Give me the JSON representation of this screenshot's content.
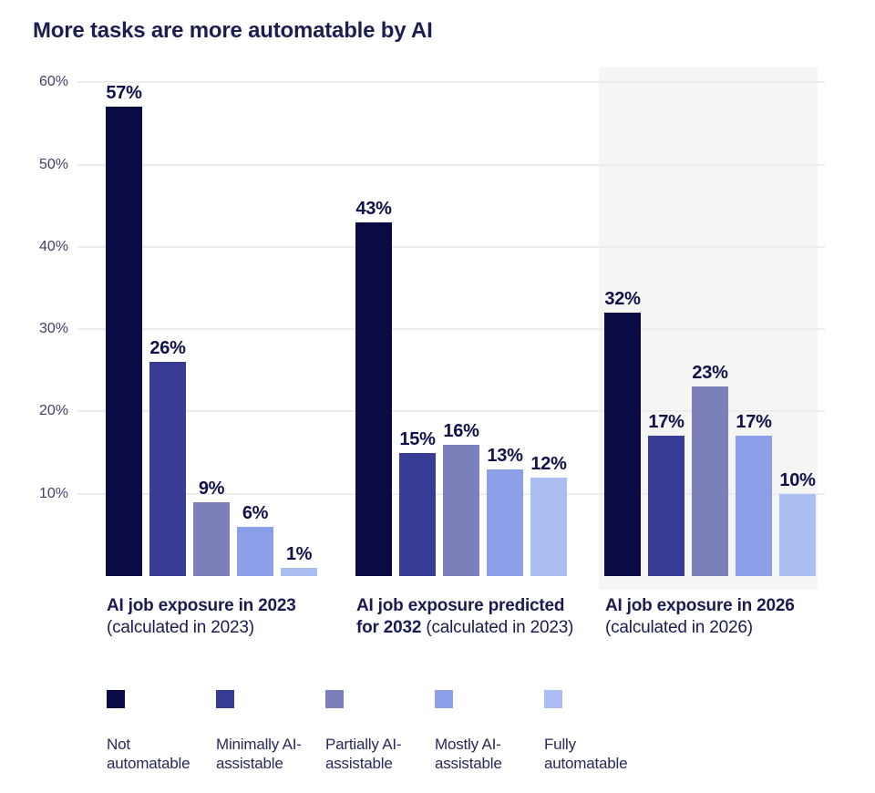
{
  "chart_data": {
    "type": "bar",
    "title": "More tasks are more automatable by AI",
    "xlabel": "",
    "ylabel": "",
    "ylim": [
      0,
      62
    ],
    "grid": true,
    "legend_position": "bottom",
    "y_ticks": [
      "10%",
      "20%",
      "30%",
      "40%",
      "50%",
      "60%"
    ],
    "value_label_format": "percent",
    "highlighted_group_index": 2,
    "groups": [
      {
        "label_lines": [
          [
            {
              "text": "AI job exposure in 2023",
              "bold": true
            }
          ],
          [
            {
              "text": "(calculated in 2023)",
              "bold": false
            }
          ]
        ]
      },
      {
        "label_lines": [
          [
            {
              "text": "AI job exposure predicted",
              "bold": true
            }
          ],
          [
            {
              "text": "for 2032",
              "bold": true
            },
            {
              "text": " (calculated in 2023)",
              "bold": false
            }
          ]
        ]
      },
      {
        "label_lines": [
          [
            {
              "text": "AI job exposure in 2026",
              "bold": true
            }
          ],
          [
            {
              "text": "(calculated in 2026)",
              "bold": false
            }
          ]
        ]
      }
    ],
    "series": [
      {
        "name": "Not automatable",
        "color": "#0a0b45",
        "values": [
          57,
          43,
          32
        ]
      },
      {
        "name": "Minimally AI-assistable",
        "color": "#373c97",
        "values": [
          26,
          15,
          17
        ]
      },
      {
        "name": "Partially AI-assistable",
        "color": "#7b7fba",
        "values": [
          9,
          16,
          23
        ]
      },
      {
        "name": "Mostly AI-assistable",
        "color": "#8c9fe9",
        "values": [
          6,
          13,
          17
        ]
      },
      {
        "name": "Fully automatable",
        "color": "#aabef2",
        "values": [
          1,
          12,
          10
        ]
      }
    ],
    "colors": {
      "grid": "#ececec",
      "highlight_bg": "#f5f5f3",
      "title_text": "#1d1d52",
      "value_label": "#10104a",
      "tick_label": "#3f3f68",
      "group_label": "#1b1b52",
      "legend_text": "#28285a"
    }
  }
}
